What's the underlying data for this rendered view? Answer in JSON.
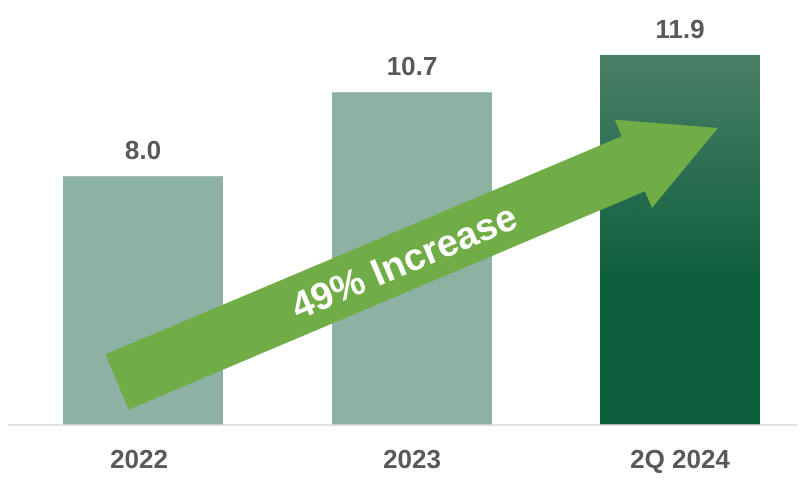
{
  "chart_data": {
    "type": "bar",
    "categories": [
      "2022",
      "2023",
      "2Q 2024"
    ],
    "values": [
      8.0,
      10.7,
      11.9
    ],
    "data_labels": [
      "8.0",
      "10.7",
      "11.9"
    ],
    "title": "",
    "xlabel": "",
    "ylabel": "",
    "ylim": [
      0,
      12.6
    ],
    "grid": false,
    "legend": "none",
    "bar_colors": [
      "#8db1a2",
      "#8db1a2",
      "#0e5f3e"
    ],
    "highlight_gradient": [
      "#4a7f67",
      "#0e5f3e"
    ],
    "label_color": "#595959",
    "axis_color": "#d9d9d9",
    "annotation": {
      "text": "49% Increase",
      "arrow_color": "#70ad47",
      "text_color": "#ffffff"
    }
  }
}
